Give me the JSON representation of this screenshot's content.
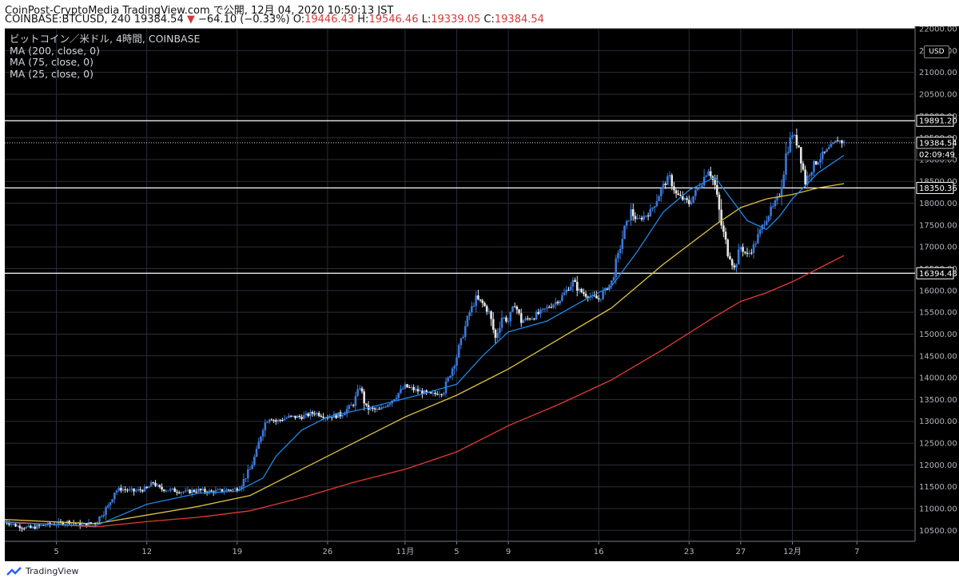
{
  "header": {
    "line1": "CoinPost-CryptoMedia TradingView.com で公開, 12月 04, 2020 10:50:13 JST",
    "symbol_prefix": "COINBASE:BTCUSD, 240 19384.54",
    "change_arrow": "▼",
    "change": "−64.10 (−0.33%)",
    "o_label": "O:",
    "o_value": "19446.43",
    "h_label": "H:",
    "h_value": "19546.46",
    "l_label": "L:",
    "l_value": "19339.05",
    "c_label": "C:",
    "c_value": "19384.54"
  },
  "legend": {
    "title": "ビットコイン／米ドル, 4時間, COINBASE",
    "ma200": "MA (200, close, 0)",
    "ma75": "MA (75, close, 0)",
    "ma25": "MA (25, close, 0)"
  },
  "currency": "USD",
  "footer": {
    "brand": "TradingView"
  },
  "colors": {
    "background": "#000000",
    "grid": "#2a2e39",
    "up_candle": "#3b78d8",
    "down_candle": "#e6e6e6",
    "ma200": "#e53935",
    "ma75": "#e0c341",
    "ma25": "#1e88e5",
    "level_line": "#ffffff"
  },
  "chart_data": {
    "type": "candlestick",
    "symbol": "COINBASE:BTCUSD",
    "interval": "240",
    "ylim": [
      10250,
      22000
    ],
    "y_ticks": [
      10500,
      11000,
      11500,
      12000,
      12500,
      13000,
      13500,
      14000,
      14500,
      15000,
      15500,
      16000,
      16500,
      17000,
      17500,
      18000,
      18500,
      19000,
      19500,
      20000,
      20500,
      21000,
      21500,
      22000
    ],
    "x_ticks": [
      {
        "label": "5",
        "day": 5
      },
      {
        "label": "12",
        "day": 12
      },
      {
        "label": "19",
        "day": 19
      },
      {
        "label": "26",
        "day": 26
      },
      {
        "label": "11月",
        "day": 32
      },
      {
        "label": "5",
        "day": 36
      },
      {
        "label": "9",
        "day": 40
      },
      {
        "label": "16",
        "day": 47
      },
      {
        "label": "23",
        "day": 54
      },
      {
        "label": "27",
        "day": 58
      },
      {
        "label": "12月",
        "day": 62
      },
      {
        "label": "7",
        "day": 67
      }
    ],
    "x_range_days": [
      1,
      71.5
    ],
    "price_path": [
      [
        1,
        10700
      ],
      [
        2,
        10600
      ],
      [
        3,
        10550
      ],
      [
        4,
        10620
      ],
      [
        5,
        10650
      ],
      [
        6,
        10700
      ],
      [
        7,
        10620
      ],
      [
        8,
        10680
      ],
      [
        9,
        11050
      ],
      [
        9.5,
        11400
      ],
      [
        10,
        11450
      ],
      [
        11,
        11400
      ],
      [
        12,
        11450
      ],
      [
        12.5,
        11600
      ],
      [
        13,
        11450
      ],
      [
        14,
        11420
      ],
      [
        15,
        11380
      ],
      [
        16,
        11420
      ],
      [
        17,
        11380
      ],
      [
        18,
        11420
      ],
      [
        19,
        11450
      ],
      [
        19.5,
        11650
      ],
      [
        20,
        11900
      ],
      [
        20.5,
        12300
      ],
      [
        21,
        12900
      ],
      [
        21.5,
        13100
      ],
      [
        22,
        13000
      ],
      [
        23,
        13100
      ],
      [
        24,
        13100
      ],
      [
        25,
        13200
      ],
      [
        26,
        13100
      ],
      [
        27,
        13150
      ],
      [
        28,
        13400
      ],
      [
        28.5,
        13800
      ],
      [
        29,
        13300
      ],
      [
        30,
        13250
      ],
      [
        31,
        13500
      ],
      [
        32,
        13800
      ],
      [
        33,
        13700
      ],
      [
        34,
        13600
      ],
      [
        35,
        13700
      ],
      [
        36,
        14500
      ],
      [
        36.5,
        15000
      ],
      [
        37,
        15500
      ],
      [
        37.5,
        15800
      ],
      [
        38,
        15700
      ],
      [
        38.5,
        15500
      ],
      [
        39,
        14900
      ],
      [
        39.5,
        15400
      ],
      [
        40,
        15300
      ],
      [
        40.5,
        15700
      ],
      [
        41,
        15300
      ],
      [
        42,
        15400
      ],
      [
        43,
        15600
      ],
      [
        44,
        15800
      ],
      [
        45,
        16200
      ],
      [
        45.5,
        16000
      ],
      [
        46,
        15900
      ],
      [
        47,
        15800
      ],
      [
        48,
        16200
      ],
      [
        48.5,
        16800
      ],
      [
        49,
        17400
      ],
      [
        49.5,
        17800
      ],
      [
        50,
        17600
      ],
      [
        51,
        17800
      ],
      [
        52,
        18400
      ],
      [
        52.5,
        18600
      ],
      [
        53,
        18200
      ],
      [
        54,
        18000
      ],
      [
        55,
        18500
      ],
      [
        55.5,
        18800
      ],
      [
        56,
        18400
      ],
      [
        56.5,
        17500
      ],
      [
        57,
        16900
      ],
      [
        57.5,
        16500
      ],
      [
        58,
        17000
      ],
      [
        58.5,
        16800
      ],
      [
        59,
        17000
      ],
      [
        60,
        17700
      ],
      [
        60.5,
        17900
      ],
      [
        61,
        18200
      ],
      [
        61.5,
        19100
      ],
      [
        62,
        19600
      ],
      [
        62.5,
        19300
      ],
      [
        63,
        18500
      ],
      [
        63.5,
        18800
      ],
      [
        64,
        19000
      ],
      [
        65,
        19300
      ],
      [
        65.5,
        19450
      ],
      [
        66,
        19384
      ]
    ],
    "ma25_path": [
      [
        1,
        10680
      ],
      [
        8,
        10600
      ],
      [
        12,
        11100
      ],
      [
        16,
        11350
      ],
      [
        19,
        11400
      ],
      [
        21,
        11700
      ],
      [
        22,
        12200
      ],
      [
        24,
        12800
      ],
      [
        26,
        13100
      ],
      [
        29,
        13300
      ],
      [
        33,
        13600
      ],
      [
        36,
        13850
      ],
      [
        38,
        14500
      ],
      [
        40,
        15050
      ],
      [
        43,
        15300
      ],
      [
        46,
        15800
      ],
      [
        48,
        16100
      ],
      [
        50,
        16900
      ],
      [
        52,
        17800
      ],
      [
        54,
        18300
      ],
      [
        56,
        18600
      ],
      [
        57,
        18200
      ],
      [
        58.5,
        17600
      ],
      [
        60,
        17400
      ],
      [
        61,
        17700
      ],
      [
        62,
        18100
      ],
      [
        63,
        18400
      ],
      [
        64,
        18700
      ],
      [
        65,
        18900
      ],
      [
        66,
        19100
      ]
    ],
    "ma75_path": [
      [
        1,
        10750
      ],
      [
        8,
        10650
      ],
      [
        12,
        10850
      ],
      [
        16,
        11050
      ],
      [
        20,
        11300
      ],
      [
        24,
        11900
      ],
      [
        28,
        12500
      ],
      [
        32,
        13100
      ],
      [
        36,
        13600
      ],
      [
        40,
        14200
      ],
      [
        44,
        14900
      ],
      [
        48,
        15600
      ],
      [
        52,
        16600
      ],
      [
        56,
        17500
      ],
      [
        58,
        17900
      ],
      [
        60,
        18100
      ],
      [
        62,
        18200
      ],
      [
        64,
        18350
      ],
      [
        66,
        18450
      ]
    ],
    "ma200_path": [
      [
        1,
        10700
      ],
      [
        8,
        10580
      ],
      [
        12,
        10700
      ],
      [
        16,
        10800
      ],
      [
        20,
        10950
      ],
      [
        24,
        11250
      ],
      [
        28,
        11600
      ],
      [
        32,
        11900
      ],
      [
        36,
        12300
      ],
      [
        40,
        12900
      ],
      [
        44,
        13400
      ],
      [
        48,
        13950
      ],
      [
        52,
        14650
      ],
      [
        56,
        15400
      ],
      [
        58,
        15750
      ],
      [
        60,
        15950
      ],
      [
        62,
        16200
      ],
      [
        64,
        16500
      ],
      [
        66,
        16800
      ]
    ],
    "horizontal_levels": [
      19891.2,
      18350.36,
      16394.48
    ],
    "current_price": 19384.54,
    "price_labels": [
      {
        "text": "19891.20",
        "value": 19891.2,
        "style": "outline"
      },
      {
        "text": "19384.54",
        "value": 19384.54,
        "style": "outline"
      },
      {
        "text": "02:09:49",
        "value": 19120,
        "style": "dark"
      },
      {
        "text": "18350.36",
        "value": 18350.36,
        "style": "outline"
      },
      {
        "text": "16394.48",
        "value": 16394.48,
        "style": "outline"
      }
    ]
  }
}
